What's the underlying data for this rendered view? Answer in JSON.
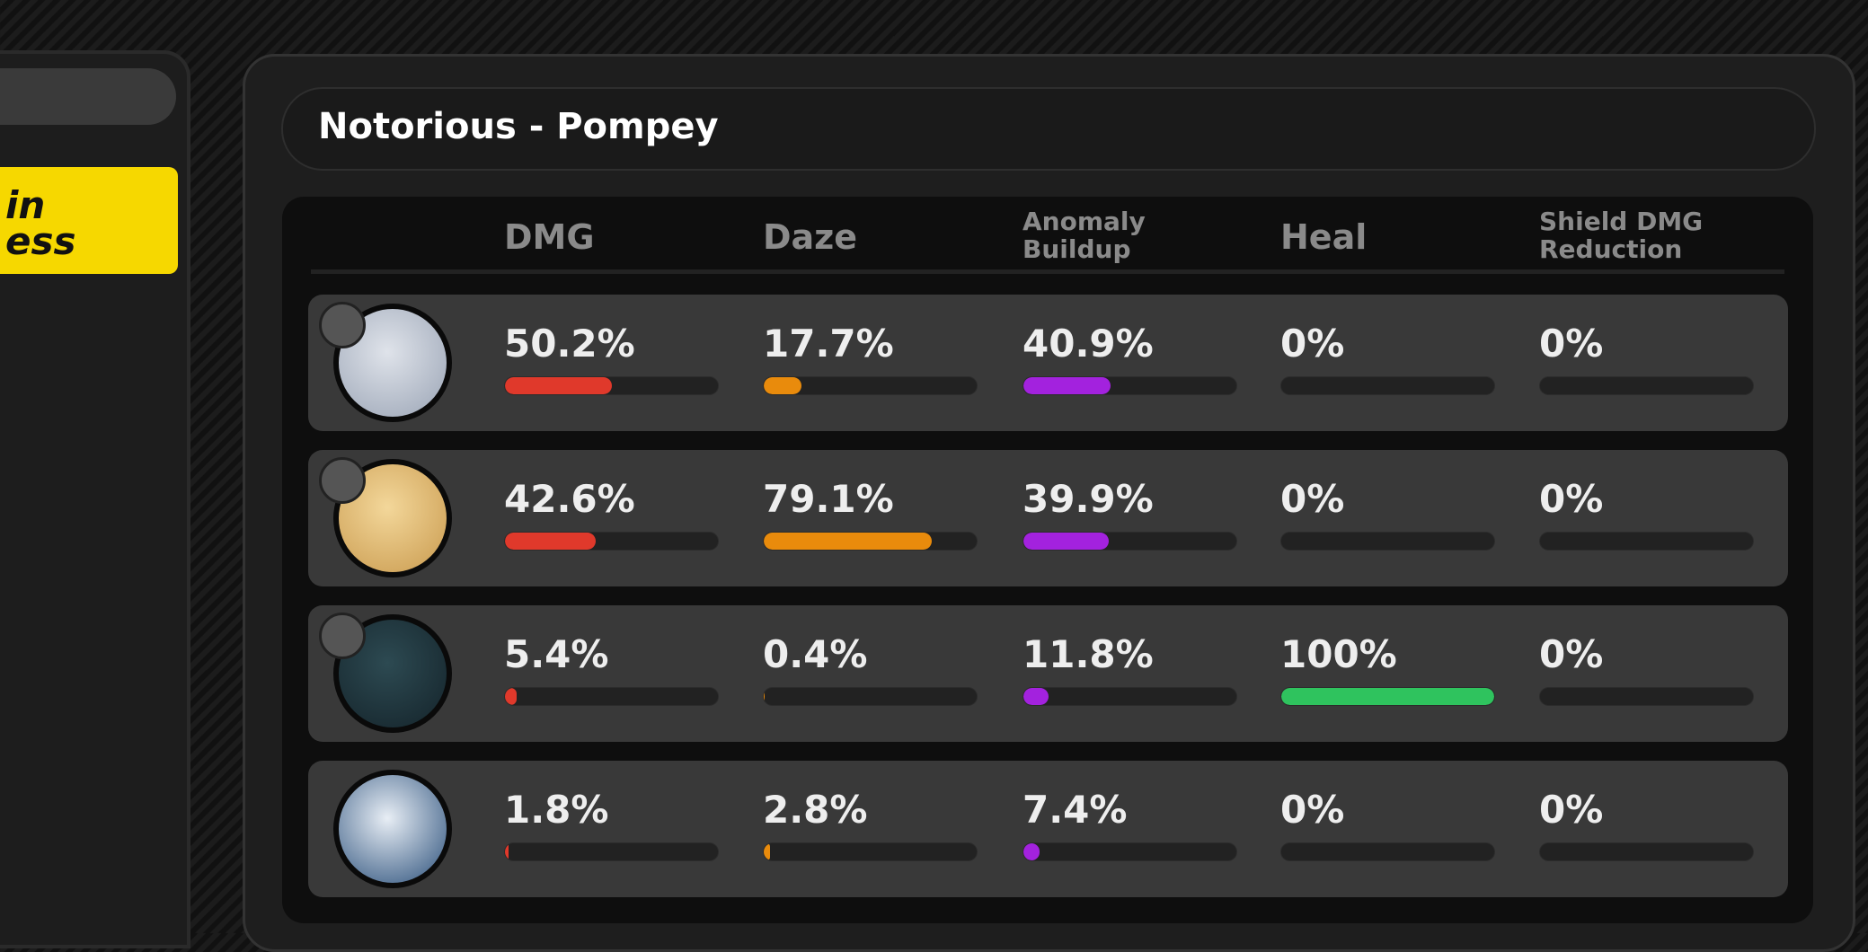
{
  "header": {
    "title": "Notorious - Pompey"
  },
  "side_panel": {
    "button_lines": [
      "in",
      "ess"
    ]
  },
  "table": {
    "columns": [
      {
        "label": "DMG",
        "color": "#e0392b"
      },
      {
        "label": "Daze",
        "color": "#e98b0c"
      },
      {
        "label": "Anomaly Buildup",
        "color": "#a322de"
      },
      {
        "label": "Heal",
        "color": "#2fc35e"
      },
      {
        "label": "Shield DMG Reduction",
        "color": "#3a8fe0"
      }
    ],
    "rows": [
      {
        "cells": [
          {
            "value": 50.2,
            "label": "50.2%"
          },
          {
            "value": 17.7,
            "label": "17.7%"
          },
          {
            "value": 40.9,
            "label": "40.9%"
          },
          {
            "value": 0,
            "label": "0%"
          },
          {
            "value": 0,
            "label": "0%"
          }
        ]
      },
      {
        "cells": [
          {
            "value": 42.6,
            "label": "42.6%"
          },
          {
            "value": 79.1,
            "label": "79.1%"
          },
          {
            "value": 39.9,
            "label": "39.9%"
          },
          {
            "value": 0,
            "label": "0%"
          },
          {
            "value": 0,
            "label": "0%"
          }
        ]
      },
      {
        "cells": [
          {
            "value": 5.4,
            "label": "5.4%"
          },
          {
            "value": 0.4,
            "label": "0.4%"
          },
          {
            "value": 11.8,
            "label": "11.8%"
          },
          {
            "value": 100,
            "label": "100%"
          },
          {
            "value": 0,
            "label": "0%"
          }
        ]
      },
      {
        "cells": [
          {
            "value": 1.8,
            "label": "1.8%"
          },
          {
            "value": 2.8,
            "label": "2.8%"
          },
          {
            "value": 7.4,
            "label": "7.4%"
          },
          {
            "value": 0,
            "label": "0%"
          },
          {
            "value": 0,
            "label": "0%"
          }
        ]
      }
    ]
  }
}
